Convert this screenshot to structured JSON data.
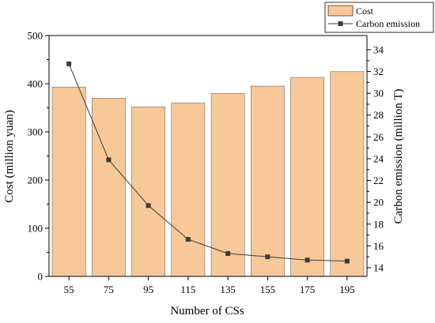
{
  "chart_data": {
    "type": "bar+line",
    "title": "",
    "categories": [
      "55",
      "75",
      "95",
      "115",
      "135",
      "155",
      "175",
      "195"
    ],
    "xlabel": "Number of CSs",
    "ylabel_left": "Cost (million yuan)",
    "ylabel_right": "Carbon emission (million T)",
    "ylim_left": [
      0,
      500
    ],
    "yticks_left": [
      0,
      100,
      200,
      300,
      400,
      500
    ],
    "ylim_right": [
      13.2,
      35.3
    ],
    "yticks_right": [
      14,
      16,
      18,
      20,
      22,
      24,
      26,
      28,
      30,
      32,
      34
    ],
    "grid": false,
    "legend_position": "top-right",
    "series": [
      {
        "name": "Cost",
        "type": "bar",
        "axis": "left",
        "color": "#f8c899",
        "values": [
          393,
          370,
          352,
          360,
          380,
          395,
          413,
          425
        ]
      },
      {
        "name": "Carbon emission",
        "type": "line",
        "axis": "right",
        "color": "#3c3c3c",
        "values": [
          32.7,
          23.9,
          19.7,
          16.6,
          15.3,
          15.0,
          14.7,
          14.6
        ]
      }
    ]
  }
}
